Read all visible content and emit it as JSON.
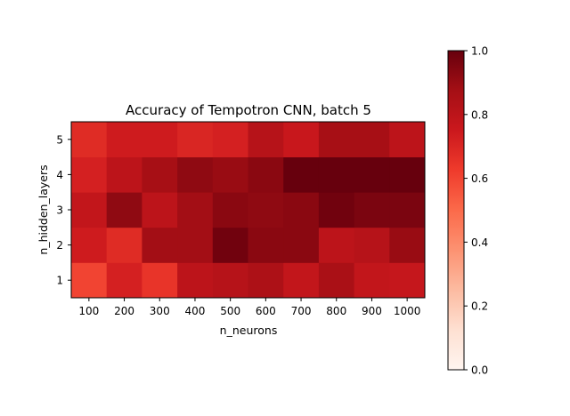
{
  "chart_data": {
    "type": "heatmap",
    "title": "Accuracy of Tempotron CNN, batch 5",
    "xlabel": "n_neurons",
    "ylabel": "n_hidden_layers",
    "x": [
      "100",
      "200",
      "300",
      "400",
      "500",
      "600",
      "700",
      "800",
      "900",
      "1000"
    ],
    "y": [
      "1",
      "2",
      "3",
      "4",
      "5"
    ],
    "values": [
      [
        0.6,
        0.72,
        0.65,
        0.8,
        0.82,
        0.85,
        0.78,
        0.86,
        0.78,
        0.77
      ],
      [
        0.74,
        0.68,
        0.88,
        0.88,
        0.98,
        0.93,
        0.93,
        0.8,
        0.82,
        0.9
      ],
      [
        0.78,
        0.92,
        0.8,
        0.88,
        0.93,
        0.92,
        0.93,
        0.98,
        0.96,
        0.96
      ],
      [
        0.72,
        0.8,
        0.87,
        0.92,
        0.9,
        0.93,
        1.0,
        1.0,
        1.0,
        1.0
      ],
      [
        0.68,
        0.74,
        0.74,
        0.7,
        0.72,
        0.82,
        0.76,
        0.87,
        0.87,
        0.8
      ]
    ],
    "colorbar": {
      "min": 0.0,
      "max": 1.0,
      "ticks": [
        "0.0",
        "0.2",
        "0.4",
        "0.6",
        "0.8",
        "1.0"
      ],
      "colormap": "Reds"
    },
    "grid": false
  }
}
